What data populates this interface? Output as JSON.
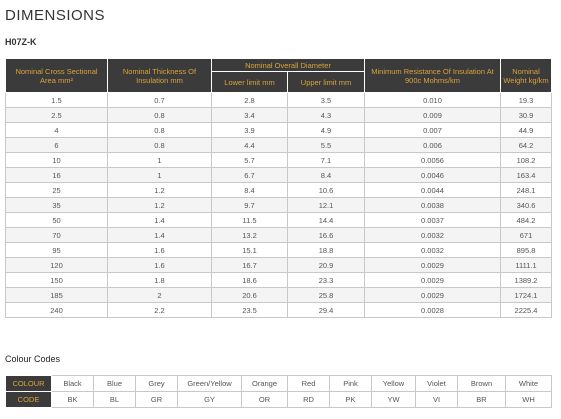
{
  "title": "DIMENSIONS",
  "subtitle": "H07Z-K",
  "table": {
    "headers": {
      "cross_section": "Nominal Cross Sectional Area mm²",
      "insulation": "Nominal Thickness Of Insulation mm",
      "overall_diameter": "Nominal Overall Diameter",
      "lower_limit": "Lower limit mm",
      "upper_limit": "Upper limit mm",
      "resistance": "Minimum Resistance Of Insulation At 900c Mohms/km",
      "weight": "Nominal Weight kg/km"
    },
    "rows": [
      [
        "1.5",
        "0.7",
        "2.8",
        "3.5",
        "0.010",
        "19.3"
      ],
      [
        "2.5",
        "0.8",
        "3.4",
        "4.3",
        "0.009",
        "30.9"
      ],
      [
        "4",
        "0.8",
        "3.9",
        "4.9",
        "0.007",
        "44.9"
      ],
      [
        "6",
        "0.8",
        "4.4",
        "5.5",
        "0.006",
        "64.2"
      ],
      [
        "10",
        "1",
        "5.7",
        "7.1",
        "0.0056",
        "108.2"
      ],
      [
        "16",
        "1",
        "6.7",
        "8.4",
        "0.0046",
        "163.4"
      ],
      [
        "25",
        "1.2",
        "8.4",
        "10.6",
        "0.0044",
        "248.1"
      ],
      [
        "35",
        "1.2",
        "9.7",
        "12.1",
        "0.0038",
        "340.6"
      ],
      [
        "50",
        "1.4",
        "11.5",
        "14.4",
        "0.0037",
        "484.2"
      ],
      [
        "70",
        "1.4",
        "13.2",
        "16.6",
        "0.0032",
        "671"
      ],
      [
        "95",
        "1.6",
        "15.1",
        "18.8",
        "0.0032",
        "895.8"
      ],
      [
        "120",
        "1.6",
        "16.7",
        "20.9",
        "0.0029",
        "1111.1"
      ],
      [
        "150",
        "1.8",
        "18.6",
        "23.3",
        "0.0029",
        "1389.2"
      ],
      [
        "185",
        "2",
        "20.6",
        "25.8",
        "0.0029",
        "1724.1"
      ],
      [
        "240",
        "2.2",
        "23.5",
        "29.4",
        "0.0028",
        "2225.4"
      ]
    ]
  },
  "colour_codes": {
    "title": "Colour Codes",
    "colour_label": "COLOUR",
    "code_label": "CODE",
    "colours": [
      "Black",
      "Blue",
      "Grey",
      "Green/Yellow",
      "Orange",
      "Red",
      "Pink",
      "Yellow",
      "Violet",
      "Brown",
      "White"
    ],
    "codes": [
      "BK",
      "BL",
      "GR",
      "GY",
      "OR",
      "RD",
      "PK",
      "YW",
      "VI",
      "BR",
      "WH"
    ]
  },
  "colors": {
    "header_bg": "#3b3b3b",
    "header_text": "#d9a43a"
  }
}
